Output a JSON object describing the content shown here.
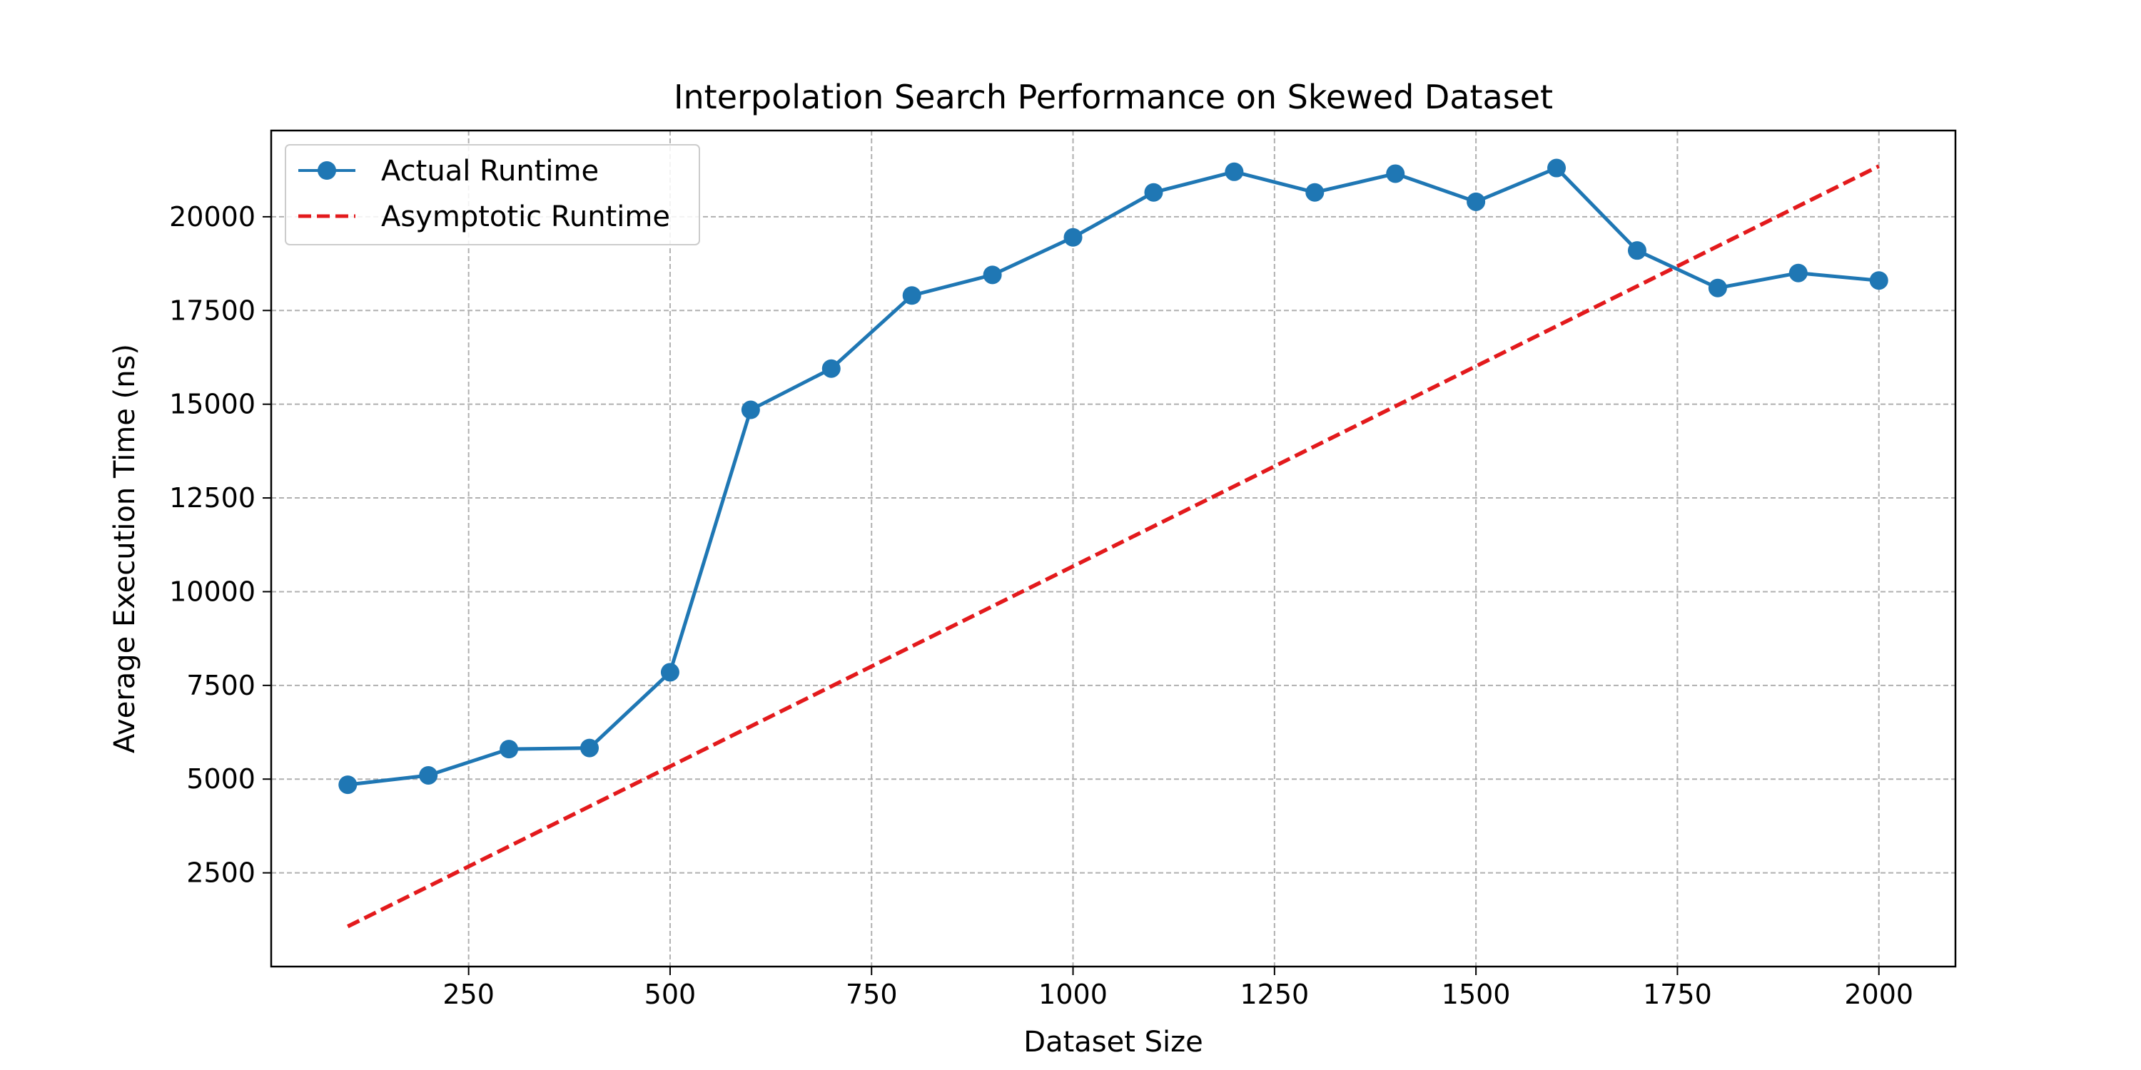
{
  "chart_data": {
    "type": "line",
    "title": "Interpolation Search Performance on Skewed Dataset",
    "xlabel": "Dataset Size",
    "ylabel": "Average Execution Time (ns)",
    "xlim": [
      5,
      2095
    ],
    "ylim": [
      0,
      22300
    ],
    "xticks": [
      250,
      500,
      750,
      1000,
      1250,
      1500,
      1750,
      2000
    ],
    "yticks": [
      2500,
      5000,
      7500,
      10000,
      12500,
      15000,
      17500,
      20000
    ],
    "grid": true,
    "legend_position": "top-left",
    "x": [
      100,
      200,
      300,
      400,
      500,
      600,
      700,
      800,
      900,
      1000,
      1100,
      1200,
      1300,
      1400,
      1500,
      1600,
      1700,
      1800,
      1900,
      2000
    ],
    "series": [
      {
        "name": "Actual Runtime",
        "style": "solid-with-markers",
        "color": "#1f77b4",
        "values": [
          4850,
          5100,
          5800,
          5830,
          7850,
          14850,
          15950,
          17900,
          18450,
          19450,
          20650,
          21200,
          20650,
          21150,
          20400,
          21300,
          19100,
          18100,
          18500,
          18300
        ]
      },
      {
        "name": "Asymptotic Runtime",
        "style": "dashed",
        "color": "#e31a1c",
        "x": [
          100,
          2000
        ],
        "values": [
          1070,
          21350
        ]
      }
    ]
  }
}
